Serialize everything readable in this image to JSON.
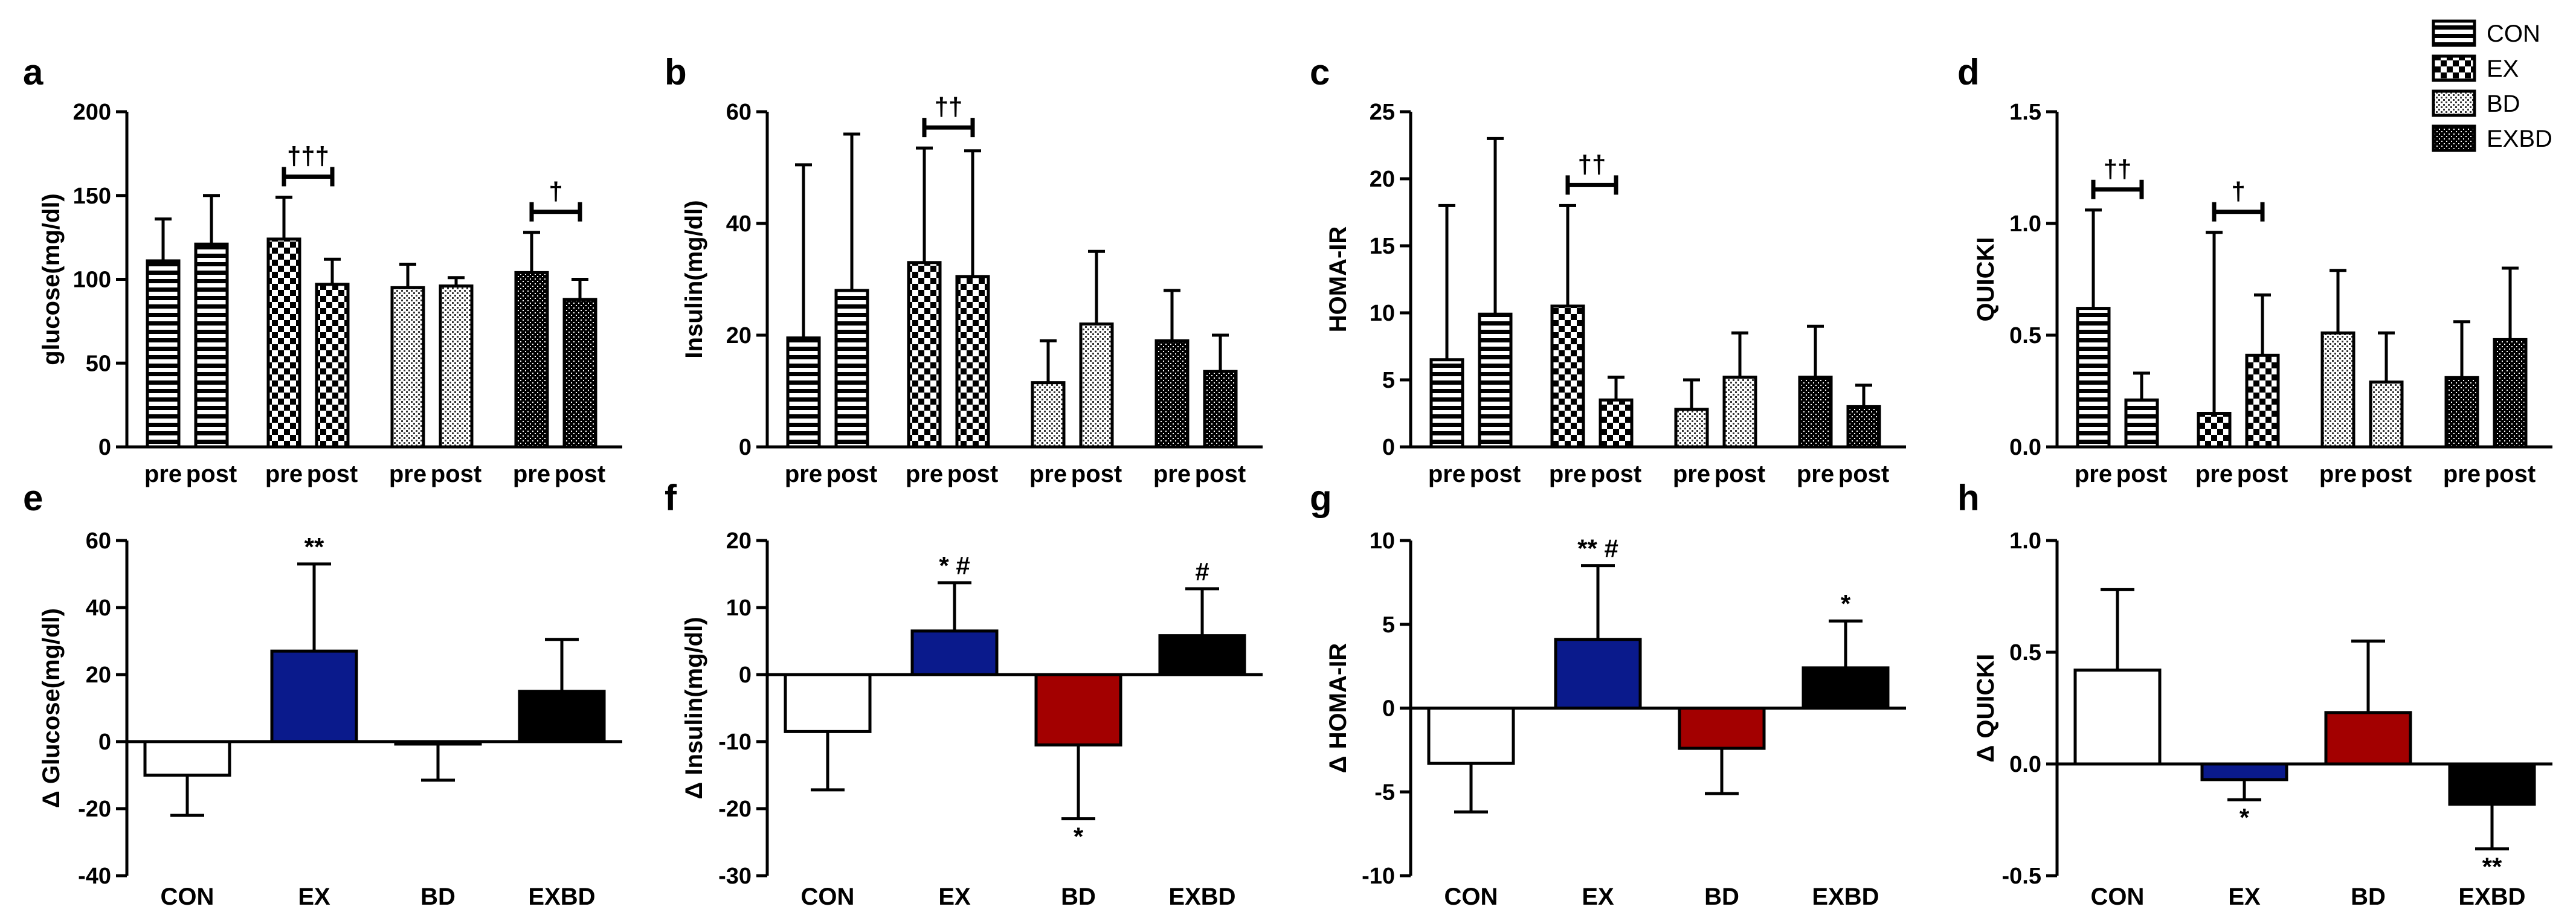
{
  "figure": {
    "legend": [
      {
        "label": "CON",
        "pattern": "horizontal-stripes"
      },
      {
        "label": "EX",
        "pattern": "checkerboard"
      },
      {
        "label": "BD",
        "pattern": "fine-dots"
      },
      {
        "label": "EXBD",
        "pattern": "dense-dots"
      }
    ],
    "colors": {
      "EX": "#0a1a8c",
      "BD": "#a30000",
      "EXBD": "#000000",
      "CON": "#ffffff"
    }
  },
  "chart_data": [
    {
      "panel": "a",
      "type": "bar",
      "ylabel": "glucose(mg/dl)",
      "ylim": [
        0,
        200
      ],
      "yticks": [
        "0",
        "50",
        "100",
        "150",
        "200"
      ],
      "groups": [
        "CON",
        "EX",
        "BD",
        "EXBD"
      ],
      "bar_labels": [
        "pre",
        "post"
      ],
      "series": [
        {
          "name": "pre",
          "values": [
            111,
            124,
            95,
            104
          ],
          "errors": [
            25,
            25,
            14,
            24
          ]
        },
        {
          "name": "post",
          "values": [
            121,
            97,
            96,
            88
          ],
          "errors": [
            29,
            15,
            5,
            12
          ]
        }
      ],
      "annotations": [
        {
          "group": "EX",
          "text": "†††"
        },
        {
          "group": "EXBD",
          "text": "†"
        }
      ]
    },
    {
      "panel": "b",
      "type": "bar",
      "ylabel": "Insulin(mg/dl)",
      "ylim": [
        0,
        60
      ],
      "yticks": [
        "0",
        "20",
        "40",
        "60"
      ],
      "groups": [
        "CON",
        "EX",
        "BD",
        "EXBD"
      ],
      "bar_labels": [
        "pre",
        "post"
      ],
      "series": [
        {
          "name": "pre",
          "values": [
            19.5,
            33,
            11.5,
            19
          ],
          "errors": [
            31,
            20.5,
            7.5,
            9
          ]
        },
        {
          "name": "post",
          "values": [
            28,
            30.5,
            22,
            13.5
          ],
          "errors": [
            28,
            22.5,
            13,
            6.5
          ]
        }
      ],
      "annotations": [
        {
          "group": "EX",
          "text": "††"
        }
      ]
    },
    {
      "panel": "c",
      "type": "bar",
      "ylabel": "HOMA-IR",
      "ylim": [
        0,
        25
      ],
      "yticks": [
        "0",
        "5",
        "10",
        "15",
        "20",
        "25"
      ],
      "groups": [
        "CON",
        "EX",
        "BD",
        "EXBD"
      ],
      "bar_labels": [
        "pre",
        "post"
      ],
      "series": [
        {
          "name": "pre",
          "values": [
            6.5,
            10.5,
            2.8,
            5.2
          ],
          "errors": [
            11.5,
            7.5,
            2.2,
            3.8
          ]
        },
        {
          "name": "post",
          "values": [
            9.9,
            3.5,
            5.2,
            3
          ],
          "errors": [
            13.1,
            1.7,
            3.3,
            1.6
          ]
        }
      ],
      "annotations": [
        {
          "group": "EX",
          "text": "††"
        }
      ]
    },
    {
      "panel": "d",
      "type": "bar",
      "ylabel": "QUICKI",
      "ylim": [
        0,
        1.5
      ],
      "yticks": [
        "0.0",
        "0.5",
        "1.0",
        "1.5"
      ],
      "groups": [
        "CON",
        "EX",
        "BD",
        "EXBD"
      ],
      "bar_labels": [
        "pre",
        "post"
      ],
      "series": [
        {
          "name": "pre",
          "values": [
            0.62,
            0.15,
            0.51,
            0.31
          ],
          "errors": [
            0.44,
            0.81,
            0.28,
            0.25
          ]
        },
        {
          "name": "post",
          "values": [
            0.21,
            0.41,
            0.29,
            0.48
          ],
          "errors": [
            0.12,
            0.27,
            0.22,
            0.32
          ]
        }
      ],
      "annotations": [
        {
          "group": "CON",
          "text": "††"
        },
        {
          "group": "EX",
          "text": "†"
        }
      ]
    },
    {
      "panel": "e",
      "type": "bar",
      "ylabel": "Δ Glucose(mg/dl)",
      "ylim": [
        -40,
        60
      ],
      "yticks": [
        "-40",
        "-20",
        "0",
        "20",
        "40",
        "60"
      ],
      "categories": [
        "CON",
        "EX",
        "BD",
        "EXBD"
      ],
      "values": [
        -10,
        27,
        -0.5,
        15
      ],
      "errors": [
        12,
        26,
        11,
        15.5
      ],
      "annotations": [
        {
          "category": "EX",
          "text": "**"
        }
      ]
    },
    {
      "panel": "f",
      "type": "bar",
      "ylabel": "Δ Insulin(mg/dl)",
      "ylim": [
        -30,
        20
      ],
      "yticks": [
        "-30",
        "-20",
        "-10",
        "0",
        "10",
        "20"
      ],
      "categories": [
        "CON",
        "EX",
        "BD",
        "EXBD"
      ],
      "values": [
        -8.5,
        6.5,
        -10.5,
        5.8
      ],
      "errors": [
        8.7,
        7.2,
        11,
        7
      ],
      "annotations": [
        {
          "category": "EX",
          "text": "* #"
        },
        {
          "category": "BD",
          "text": "*"
        },
        {
          "category": "EXBD",
          "text": "#"
        }
      ]
    },
    {
      "panel": "g",
      "type": "bar",
      "ylabel": "Δ HOMA-IR",
      "ylim": [
        -10,
        10
      ],
      "yticks": [
        "-10",
        "-5",
        "0",
        "5",
        "10"
      ],
      "categories": [
        "CON",
        "EX",
        "BD",
        "EXBD"
      ],
      "values": [
        -3.3,
        4.1,
        -2.4,
        2.4
      ],
      "errors": [
        2.9,
        4.4,
        2.7,
        2.8
      ],
      "annotations": [
        {
          "category": "EX",
          "text": "** #"
        },
        {
          "category": "EXBD",
          "text": "*"
        }
      ]
    },
    {
      "panel": "h",
      "type": "bar",
      "ylabel": "Δ QUICKI",
      "ylim": [
        -0.5,
        1.0
      ],
      "yticks": [
        "-0.5",
        "0.0",
        "0.5",
        "1.0"
      ],
      "categories": [
        "CON",
        "EX",
        "BD",
        "EXBD"
      ],
      "values": [
        0.42,
        -0.07,
        0.23,
        -0.18
      ],
      "errors": [
        0.36,
        0.09,
        0.32,
        0.2
      ],
      "annotations": [
        {
          "category": "EX",
          "text": "*"
        },
        {
          "category": "EXBD",
          "text": "**"
        }
      ]
    }
  ]
}
